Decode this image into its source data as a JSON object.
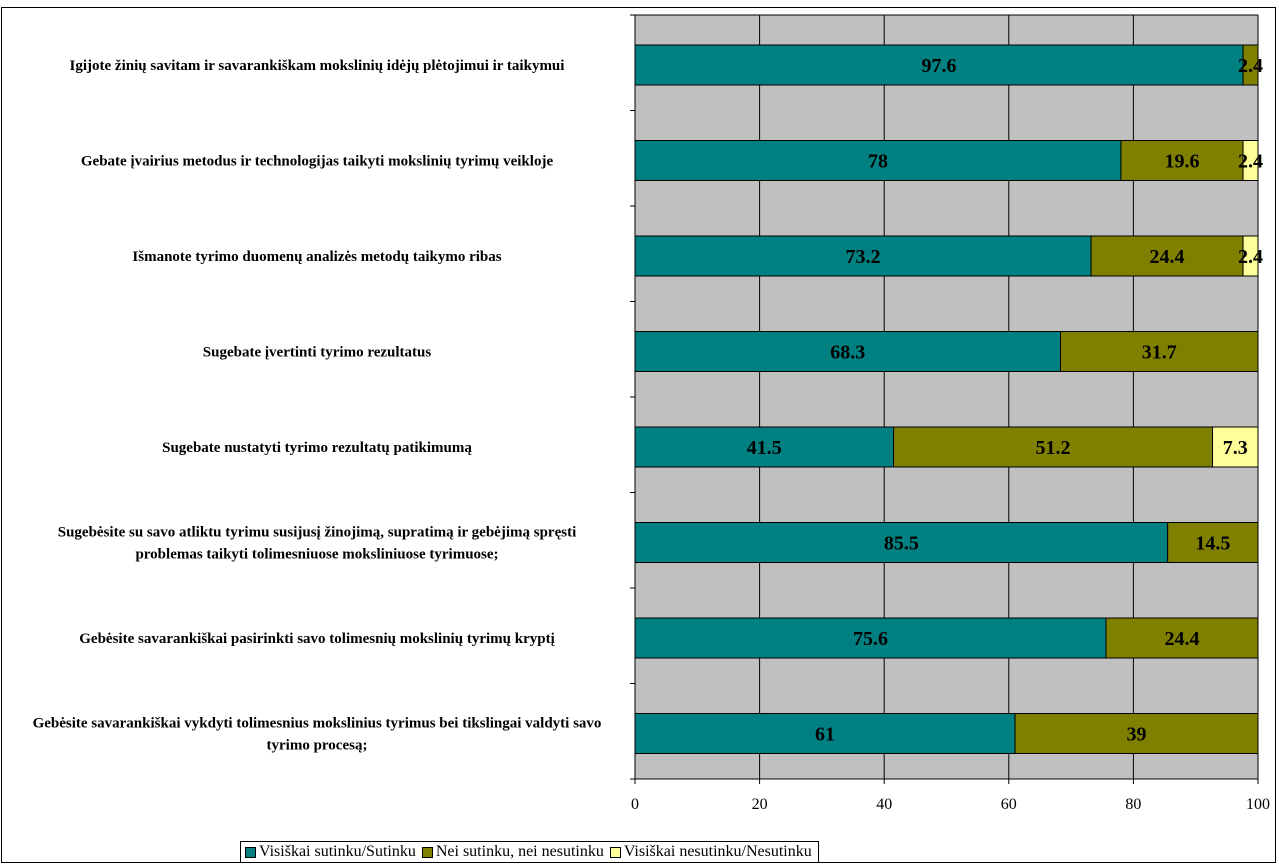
{
  "chart_data": {
    "type": "bar",
    "orientation": "horizontal",
    "stacked": true,
    "categories": [
      "Igijote žinių savitam ir savarankiškam mokslinių idėjų plėtojimui ir taikymui",
      "Gebate įvairius metodus ir technologijas taikyti mokslinių tyrimų veikloje",
      "Išmanote tyrimo duomenų analizės metodų taikymo ribas",
      "Sugebate įvertinti tyrimo rezultatus",
      "Sugebate nustatyti tyrimo rezultatų patikimumą",
      "Sugebėsite su savo atliktu tyrimu susijusį žinojimą, supratimą ir gebėjimą spręsti problemas taikyti tolimesniuose moksliniuose tyrimuose;",
      "Gebėsite savarankiškai pasirinkti savo tolimesnių mokslinių tyrimų kryptį",
      "Gebėsite savarankiškai vykdyti tolimesnius mokslinius tyrimus bei tikslingai valdyti savo tyrimo procesą;"
    ],
    "series": [
      {
        "name": "Visiškai sutinku/Sutinku",
        "color": "#008080",
        "values": [
          97.6,
          78,
          73.2,
          68.3,
          41.5,
          85.5,
          75.6,
          61
        ]
      },
      {
        "name": "Nei sutinku, nei nesutinku",
        "color": "#808000",
        "values": [
          2.4,
          19.6,
          24.4,
          31.7,
          51.2,
          14.5,
          24.4,
          39
        ]
      },
      {
        "name": "Visiškai nesutinku/Nesutinku",
        "color": "#ffff99",
        "values": [
          0,
          2.4,
          2.4,
          0,
          7.3,
          0,
          0,
          0
        ]
      }
    ],
    "data_labels": [
      [
        "97.6",
        "2.4",
        ""
      ],
      [
        "78",
        "19.6",
        "2.4"
      ],
      [
        "73.2",
        "24.4",
        "2.4"
      ],
      [
        "68.3",
        "31.7",
        ""
      ],
      [
        "41.5",
        "51.2",
        "7.3"
      ],
      [
        "85.5",
        "14.5",
        ""
      ],
      [
        "75.6",
        "24.4",
        ""
      ],
      [
        "61",
        "39",
        ""
      ]
    ],
    "xlim": [
      0,
      100
    ],
    "xticks": [
      0,
      20,
      40,
      60,
      80,
      100
    ],
    "grid": true,
    "plot_background": "#c0c0c0",
    "legend_position": "bottom"
  }
}
